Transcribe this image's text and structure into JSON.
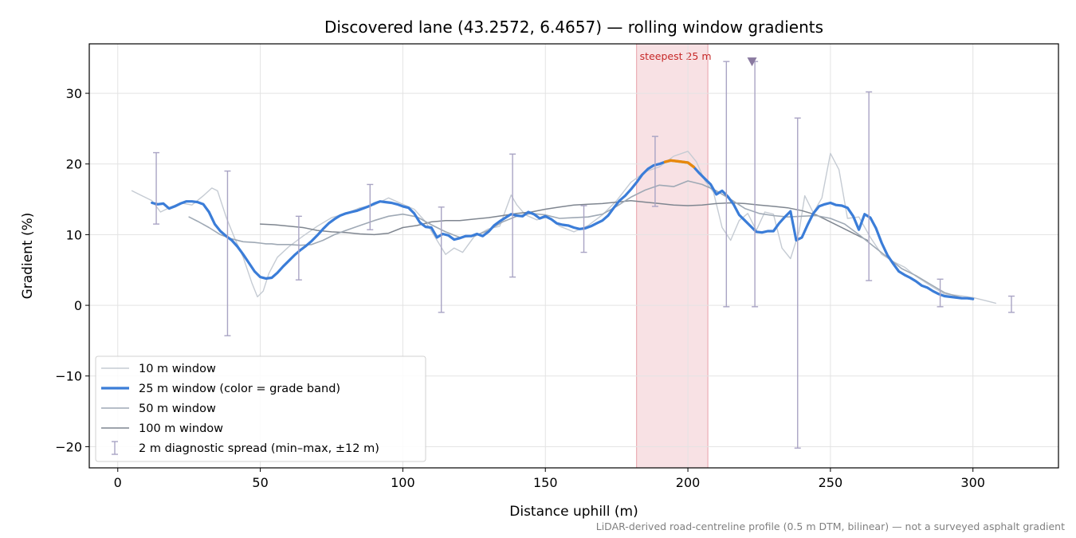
{
  "chart_data": {
    "type": "line",
    "title": "Discovered lane (43.2572, 6.4657) — rolling window gradients",
    "xlabel": "Distance uphill (m)",
    "ylabel": "Gradient (%)",
    "xlim": [
      -10,
      330
    ],
    "ylim": [
      -23,
      37
    ],
    "x_ticks": [
      0,
      50,
      100,
      150,
      200,
      250,
      300
    ],
    "y_ticks": [
      -20,
      -10,
      0,
      10,
      20,
      30
    ],
    "x_tick_labels": [
      "0",
      "50",
      "100",
      "150",
      "200",
      "250",
      "300"
    ],
    "y_tick_labels": [
      "−20",
      "−10",
      "0",
      "10",
      "20",
      "30"
    ],
    "grid": true,
    "legend_position": "lower-left",
    "colors": {
      "w10": "#c5cbd3",
      "w25": "#3b7dd8",
      "w25_steep": "#e8890c",
      "w50": "#9fa9b5",
      "w100": "#7f8690",
      "spread": "#a9a4c4",
      "highlight": "#f2c9cd",
      "marker": "#8a7aa0"
    },
    "series": [
      {
        "name": "10 m window",
        "x": [
          5,
          8,
          12,
          15,
          18,
          22,
          26,
          30,
          33,
          35,
          38,
          41,
          44,
          47,
          49,
          51,
          53,
          56,
          60,
          65,
          70,
          75,
          80,
          85,
          90,
          95,
          100,
          104,
          108,
          112,
          115,
          118,
          121,
          125,
          130,
          134,
          138,
          140,
          143,
          147,
          151,
          155,
          160,
          165,
          170,
          175,
          180,
          185,
          190,
          195,
          200,
          203,
          206,
          209,
          212,
          215,
          218,
          221,
          224,
          227,
          230,
          233,
          236,
          239,
          241,
          244,
          247,
          250,
          253,
          256,
          260,
          264,
          268,
          272,
          276,
          280,
          285,
          290,
          295,
          300,
          305,
          308
        ],
        "values": [
          16.2,
          15.6,
          14.8,
          13.2,
          13.8,
          14.5,
          14.2,
          15.5,
          16.6,
          16.2,
          12.5,
          9.5,
          6.8,
          3.2,
          1.2,
          2.0,
          4.5,
          6.8,
          8.3,
          9.8,
          11.2,
          12.4,
          13.0,
          13.8,
          14.2,
          15.2,
          14.3,
          13.6,
          11.8,
          9.2,
          7.2,
          8.1,
          7.5,
          9.7,
          10.8,
          11.2,
          15.6,
          14.2,
          12.8,
          12.1,
          12.5,
          11.2,
          10.4,
          11.3,
          12.8,
          14.8,
          17.4,
          18.9,
          19.6,
          21.1,
          21.8,
          20.3,
          17.6,
          16.0,
          11.0,
          9.2,
          12.0,
          13.0,
          10.6,
          13.2,
          12.9,
          8.1,
          6.6,
          10.4,
          15.5,
          13.1,
          15.2,
          21.5,
          19.2,
          12.3,
          12.5,
          9.6,
          7.2,
          6.2,
          5.4,
          4.1,
          2.8,
          1.6,
          1.4,
          1.1,
          0.6,
          0.3
        ]
      },
      {
        "name": "25 m window (color = grade band)",
        "x": [
          12,
          14,
          16,
          18,
          20,
          22,
          24,
          26,
          28,
          30,
          32,
          34,
          36,
          38,
          40,
          42,
          44,
          46,
          48,
          50,
          52,
          54,
          56,
          58,
          60,
          62,
          64,
          66,
          68,
          70,
          72,
          74,
          76,
          78,
          80,
          82,
          84,
          86,
          88,
          90,
          92,
          94,
          96,
          98,
          100,
          102,
          104,
          106,
          108,
          110,
          112,
          114,
          116,
          118,
          120,
          122,
          124,
          126,
          128,
          130,
          132,
          134,
          136,
          138,
          140,
          142,
          144,
          146,
          148,
          150,
          152,
          154,
          156,
          158,
          160,
          162,
          164,
          166,
          168,
          170,
          172,
          174,
          176,
          178,
          180,
          182,
          184,
          186,
          188,
          190,
          192,
          194,
          196,
          198,
          200,
          202,
          204,
          206,
          208,
          210,
          212,
          214,
          216,
          218,
          220,
          222,
          224,
          226,
          228,
          230,
          232,
          234,
          236,
          238,
          240,
          242,
          244,
          246,
          248,
          250,
          252,
          254,
          256,
          258,
          260,
          262,
          264,
          266,
          268,
          270,
          272,
          274,
          276,
          278,
          280,
          282,
          284,
          286,
          288,
          290,
          292,
          294,
          296,
          298,
          300
        ],
        "values": [
          14.5,
          14.3,
          14.4,
          13.7,
          14.0,
          14.4,
          14.7,
          14.7,
          14.6,
          14.3,
          13.2,
          11.5,
          10.5,
          9.8,
          9.2,
          8.3,
          7.2,
          6.0,
          4.8,
          4.0,
          3.8,
          3.9,
          4.6,
          5.5,
          6.3,
          7.1,
          7.8,
          8.4,
          9.1,
          9.9,
          10.8,
          11.6,
          12.2,
          12.7,
          13.0,
          13.2,
          13.4,
          13.7,
          14.0,
          14.4,
          14.7,
          14.6,
          14.5,
          14.3,
          14.0,
          13.8,
          13.0,
          11.7,
          11.1,
          11.0,
          9.6,
          10.1,
          9.9,
          9.3,
          9.5,
          9.8,
          9.8,
          10.1,
          9.8,
          10.4,
          11.3,
          11.9,
          12.4,
          12.9,
          12.7,
          12.6,
          13.2,
          12.9,
          12.3,
          12.6,
          12.2,
          11.6,
          11.4,
          11.3,
          11.0,
          10.8,
          10.9,
          11.2,
          11.6,
          12.0,
          12.7,
          13.8,
          14.8,
          15.5,
          16.4,
          17.4,
          18.5,
          19.3,
          19.8,
          20.0,
          20.3,
          20.5,
          20.4,
          20.3,
          20.2,
          19.6,
          18.7,
          17.9,
          17.1,
          15.7,
          16.2,
          15.4,
          14.3,
          12.8,
          12.0,
          11.2,
          10.4,
          10.3,
          10.5,
          10.5,
          11.6,
          12.5,
          13.3,
          9.2,
          9.6,
          11.4,
          13.0,
          14.0,
          14.3,
          14.5,
          14.2,
          14.1,
          13.8,
          12.6,
          10.7,
          12.9,
          12.4,
          10.9,
          8.8,
          7.1,
          5.9,
          4.8,
          4.3,
          3.9,
          3.4,
          2.8,
          2.5,
          2.0,
          1.6,
          1.3,
          1.2,
          1.1,
          1.0,
          1.0,
          0.9
        ]
      },
      {
        "name": "50 m window",
        "x": [
          25,
          28,
          32,
          36,
          40,
          44,
          48,
          50,
          52,
          54,
          56,
          60,
          64,
          68,
          72,
          76,
          80,
          85,
          90,
          95,
          100,
          105,
          110,
          115,
          120,
          125,
          130,
          135,
          140,
          145,
          150,
          155,
          160,
          165,
          170,
          175,
          180,
          185,
          190,
          195,
          200,
          205,
          210,
          215,
          220,
          225,
          230,
          235,
          240,
          245,
          250,
          255,
          260,
          265,
          270,
          275,
          280,
          285,
          290,
          295,
          300
        ],
        "values": [
          12.5,
          11.9,
          11.0,
          10.0,
          9.4,
          9.0,
          8.9,
          8.8,
          8.7,
          8.7,
          8.6,
          8.6,
          8.5,
          8.6,
          9.2,
          10.0,
          10.6,
          11.3,
          12.0,
          12.6,
          12.9,
          12.5,
          11.4,
          10.4,
          9.6,
          9.8,
          10.6,
          11.8,
          12.6,
          13.0,
          12.8,
          12.3,
          12.4,
          12.5,
          12.9,
          14.0,
          15.3,
          16.3,
          17.0,
          16.8,
          17.6,
          17.1,
          16.2,
          15.0,
          13.7,
          13.0,
          12.7,
          12.5,
          12.6,
          12.7,
          12.3,
          11.5,
          10.0,
          8.4,
          6.8,
          5.2,
          4.2,
          3.0,
          1.8,
          1.2,
          0.8
        ]
      },
      {
        "name": "100 m window",
        "x": [
          50,
          55,
          60,
          65,
          70,
          75,
          80,
          85,
          90,
          95,
          100,
          105,
          110,
          115,
          120,
          125,
          130,
          135,
          140,
          145,
          150,
          155,
          160,
          165,
          170,
          175,
          180,
          185,
          190,
          195,
          200,
          205,
          210,
          215,
          220,
          225,
          230,
          235,
          240,
          245,
          250,
          255,
          260,
          263
        ],
        "values": [
          11.5,
          11.4,
          11.2,
          11.0,
          10.6,
          10.4,
          10.3,
          10.1,
          10.0,
          10.2,
          11.0,
          11.3,
          11.8,
          12.0,
          12.0,
          12.2,
          12.4,
          12.7,
          13.0,
          13.2,
          13.6,
          13.9,
          14.2,
          14.3,
          14.4,
          14.6,
          14.8,
          14.6,
          14.4,
          14.2,
          14.1,
          14.2,
          14.4,
          14.5,
          14.4,
          14.2,
          14.0,
          13.8,
          13.4,
          12.8,
          11.8,
          10.8,
          9.8,
          9.2
        ]
      }
    ],
    "steep_segment": {
      "x": [
        192,
        194,
        196,
        198,
        200,
        202
      ],
      "values": [
        20.3,
        20.5,
        20.4,
        20.3,
        20.2,
        19.6
      ]
    },
    "diagnostic_spread": {
      "name": "2 m diagnostic spread (min–max, ±12 m)",
      "x": [
        13.5,
        38.5,
        63.5,
        88.5,
        113.5,
        138.5,
        163.5,
        188.5,
        213.5,
        223.5,
        238.5,
        263.5,
        288.5,
        313.5
      ],
      "min": [
        11.5,
        -4.3,
        3.6,
        10.7,
        -1.0,
        4.0,
        7.5,
        14.0,
        -0.2,
        -0.2,
        -20.2,
        3.5,
        -0.2,
        -1.0
      ],
      "max": [
        21.6,
        19.0,
        12.6,
        17.1,
        13.9,
        21.4,
        14.1,
        23.9,
        34.5,
        34.5,
        26.5,
        30.2,
        3.7,
        1.3
      ]
    },
    "highlight_band": {
      "x0": 182,
      "x1": 207,
      "label": "steepest 25 m"
    },
    "marker": {
      "x": 222.5,
      "y": 34.5,
      "shape": "down-triangle"
    },
    "footnote": "LiDAR-derived road-centreline profile (0.5 m DTM, bilinear) — not a surveyed asphalt gradient"
  }
}
